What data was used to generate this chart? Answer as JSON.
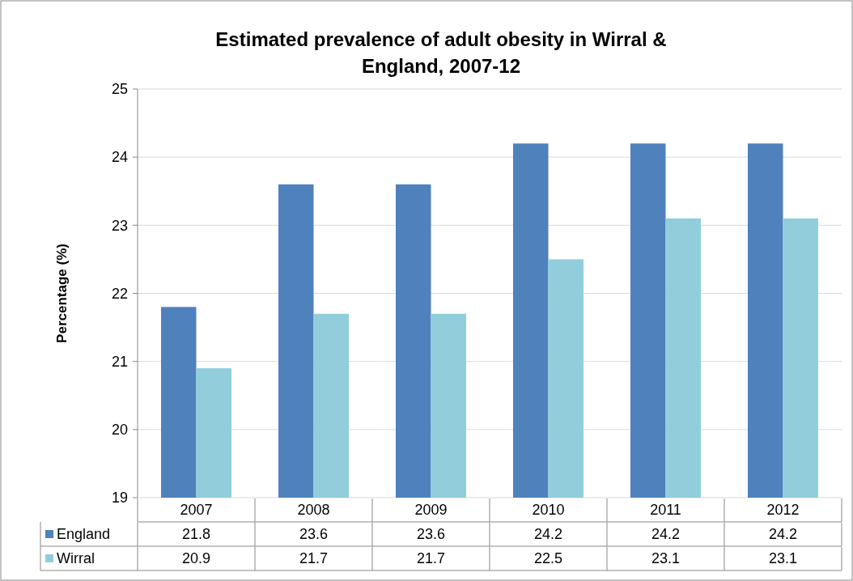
{
  "chart_data": {
    "type": "bar",
    "title": "Estimated prevalence of adult obesity in Wirral & England, 2007-12",
    "ylabel": "Percentage (%)",
    "categories": [
      "2007",
      "2008",
      "2009",
      "2010",
      "2011",
      "2012"
    ],
    "series": [
      {
        "name": "England",
        "color": "#4f81bd",
        "values": [
          21.8,
          23.6,
          23.6,
          24.2,
          24.2,
          24.2
        ]
      },
      {
        "name": "Wirral",
        "color": "#92cddc",
        "values": [
          20.9,
          21.7,
          21.7,
          22.5,
          23.1,
          23.1
        ]
      }
    ],
    "ylim": [
      19,
      25
    ],
    "yticks": [
      19,
      20,
      21,
      22,
      23,
      24,
      25
    ],
    "grid": "y",
    "data_labels": true,
    "legend": "bottom"
  }
}
